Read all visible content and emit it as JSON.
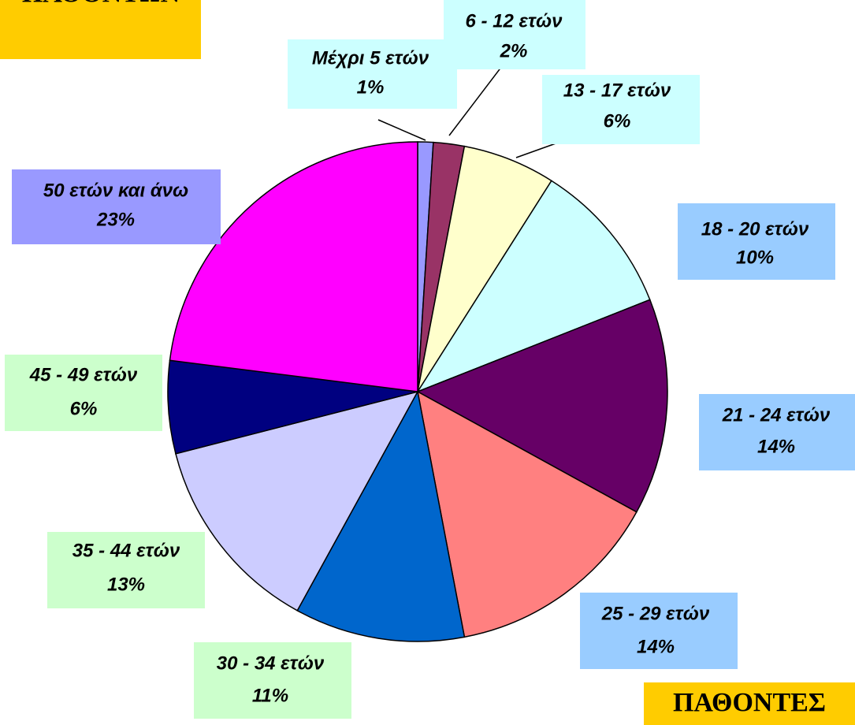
{
  "chart_data": {
    "type": "pie",
    "title": "ΠΑΘΟΝΤΩΝ",
    "subtitle": "ΠΑΘΟΝΤΕΣ",
    "categories": [
      "Μέχρι 5 ετών",
      "6 - 12 ετών",
      "13 - 17 ετών",
      "18 - 20 ετών",
      "21 - 24 ετών",
      "25 - 29 ετών",
      "30 - 34 ετών",
      "35 - 44 ετών",
      "45 - 49 ετών",
      "50 ετών και άνω"
    ],
    "values": [
      1,
      2,
      6,
      10,
      14,
      14,
      11,
      13,
      6,
      23
    ],
    "value_labels": [
      "1%",
      "2%",
      "6%",
      "10%",
      "14%",
      "14%",
      "11%",
      "13%",
      "6%",
      "23%"
    ],
    "colors": [
      "#9999ff",
      "#993366",
      "#ffffcc",
      "#ccffff",
      "#660066",
      "#ff8080",
      "#0066cc",
      "#ccccff",
      "#000080",
      "#ff00ff"
    ],
    "label_box_colors": [
      "#ccffff",
      "#ccffff",
      "#ccffff",
      "#99ccff",
      "#99ccff",
      "#99ccff",
      "#ccffcc",
      "#ccffcc",
      "#ccffcc",
      "#9999ff"
    ]
  }
}
